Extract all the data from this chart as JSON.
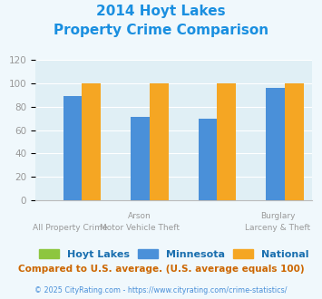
{
  "title_line1": "2014 Hoyt Lakes",
  "title_line2": "Property Crime Comparison",
  "title_color": "#1a8fe0",
  "series": {
    "Hoyt Lakes": {
      "values": [
        0,
        0,
        0,
        0
      ],
      "color": "#8dc63f"
    },
    "Minnesota": {
      "values": [
        89,
        71,
        70,
        96
      ],
      "color": "#4a90d9"
    },
    "National": {
      "values": [
        100,
        100,
        100,
        100
      ],
      "color": "#f5a623"
    }
  },
  "x_labels_top": [
    "",
    "Arson",
    "",
    "Burglary"
  ],
  "x_labels_bot": [
    "All Property Crime",
    "Motor Vehicle Theft",
    "",
    "Larceny & Theft"
  ],
  "ylim": [
    0,
    120
  ],
  "yticks": [
    0,
    20,
    40,
    60,
    80,
    100,
    120
  ],
  "background_color": "#f0f8fc",
  "plot_bg_color": "#e0eff5",
  "grid_color": "#ffffff",
  "bar_width": 0.28,
  "legend_labels": [
    "Hoyt Lakes",
    "Minnesota",
    "National"
  ],
  "legend_colors": [
    "#8dc63f",
    "#4a90d9",
    "#f5a623"
  ],
  "footnote1": "Compared to U.S. average. (U.S. average equals 100)",
  "footnote2": "© 2025 CityRating.com - https://www.cityrating.com/crime-statistics/",
  "footnote1_color": "#cc6600",
  "footnote2_color": "#4a90d9",
  "tick_label_color": "#999999",
  "legend_text_color": "#1a6faf"
}
